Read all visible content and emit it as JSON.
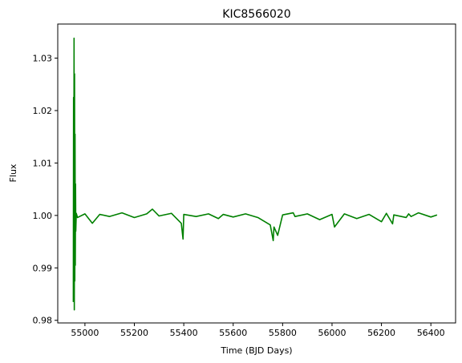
{
  "chart_data": {
    "type": "line",
    "title": "KIC8566020",
    "xlabel": "Time (BJD Days)",
    "ylabel": "Flux",
    "xlim": [
      54890,
      56500
    ],
    "ylim": [
      0.9795,
      1.0365
    ],
    "xticks": [
      55000,
      55200,
      55400,
      55600,
      55800,
      56000,
      56200,
      56400
    ],
    "yticks": [
      0.98,
      0.99,
      1.0,
      1.01,
      1.02,
      1.03
    ],
    "ytick_labels": [
      "0.98",
      "0.99",
      "1.00",
      "1.01",
      "1.02",
      "1.03"
    ],
    "grid": false,
    "series": [
      {
        "color": "#008000",
        "x": [
          54953,
          54954,
          54955,
          54956,
          54957,
          54958,
          54959,
          54960,
          54961,
          54962,
          54963,
          54965,
          54970,
          55000,
          55030,
          55060,
          55100,
          55150,
          55200,
          55250,
          55273,
          55300,
          55350,
          55390,
          55397,
          55400,
          55450,
          55500,
          55540,
          55560,
          55600,
          55650,
          55700,
          55750,
          55762,
          55765,
          55780,
          55800,
          55843,
          55850,
          55900,
          55950,
          56000,
          56010,
          56050,
          56100,
          56150,
          56200,
          56220,
          56245,
          56250,
          56300,
          56310,
          56320,
          56350,
          56400,
          56425
        ],
        "y": [
          0.9835,
          1.0225,
          0.9845,
          1.0338,
          0.982,
          1.027,
          0.9875,
          1.0155,
          0.9905,
          1.006,
          0.997,
          1.0004,
          0.9996,
          1.0003,
          0.9985,
          1.0002,
          0.9998,
          1.0005,
          0.9996,
          1.0003,
          1.0012,
          0.9999,
          1.0004,
          0.9985,
          0.9955,
          1.0002,
          0.9998,
          1.0003,
          0.9994,
          1.0002,
          0.9997,
          1.0003,
          0.9996,
          0.9982,
          0.9952,
          0.9978,
          0.9962,
          1.0001,
          1.0005,
          0.9998,
          1.0003,
          0.9992,
          1.0002,
          0.9978,
          1.0003,
          0.9994,
          1.0002,
          0.9988,
          1.0004,
          0.9984,
          1.0001,
          0.9996,
          1.0003,
          0.9998,
          1.0005,
          0.9997,
          1.0001
        ]
      }
    ]
  }
}
